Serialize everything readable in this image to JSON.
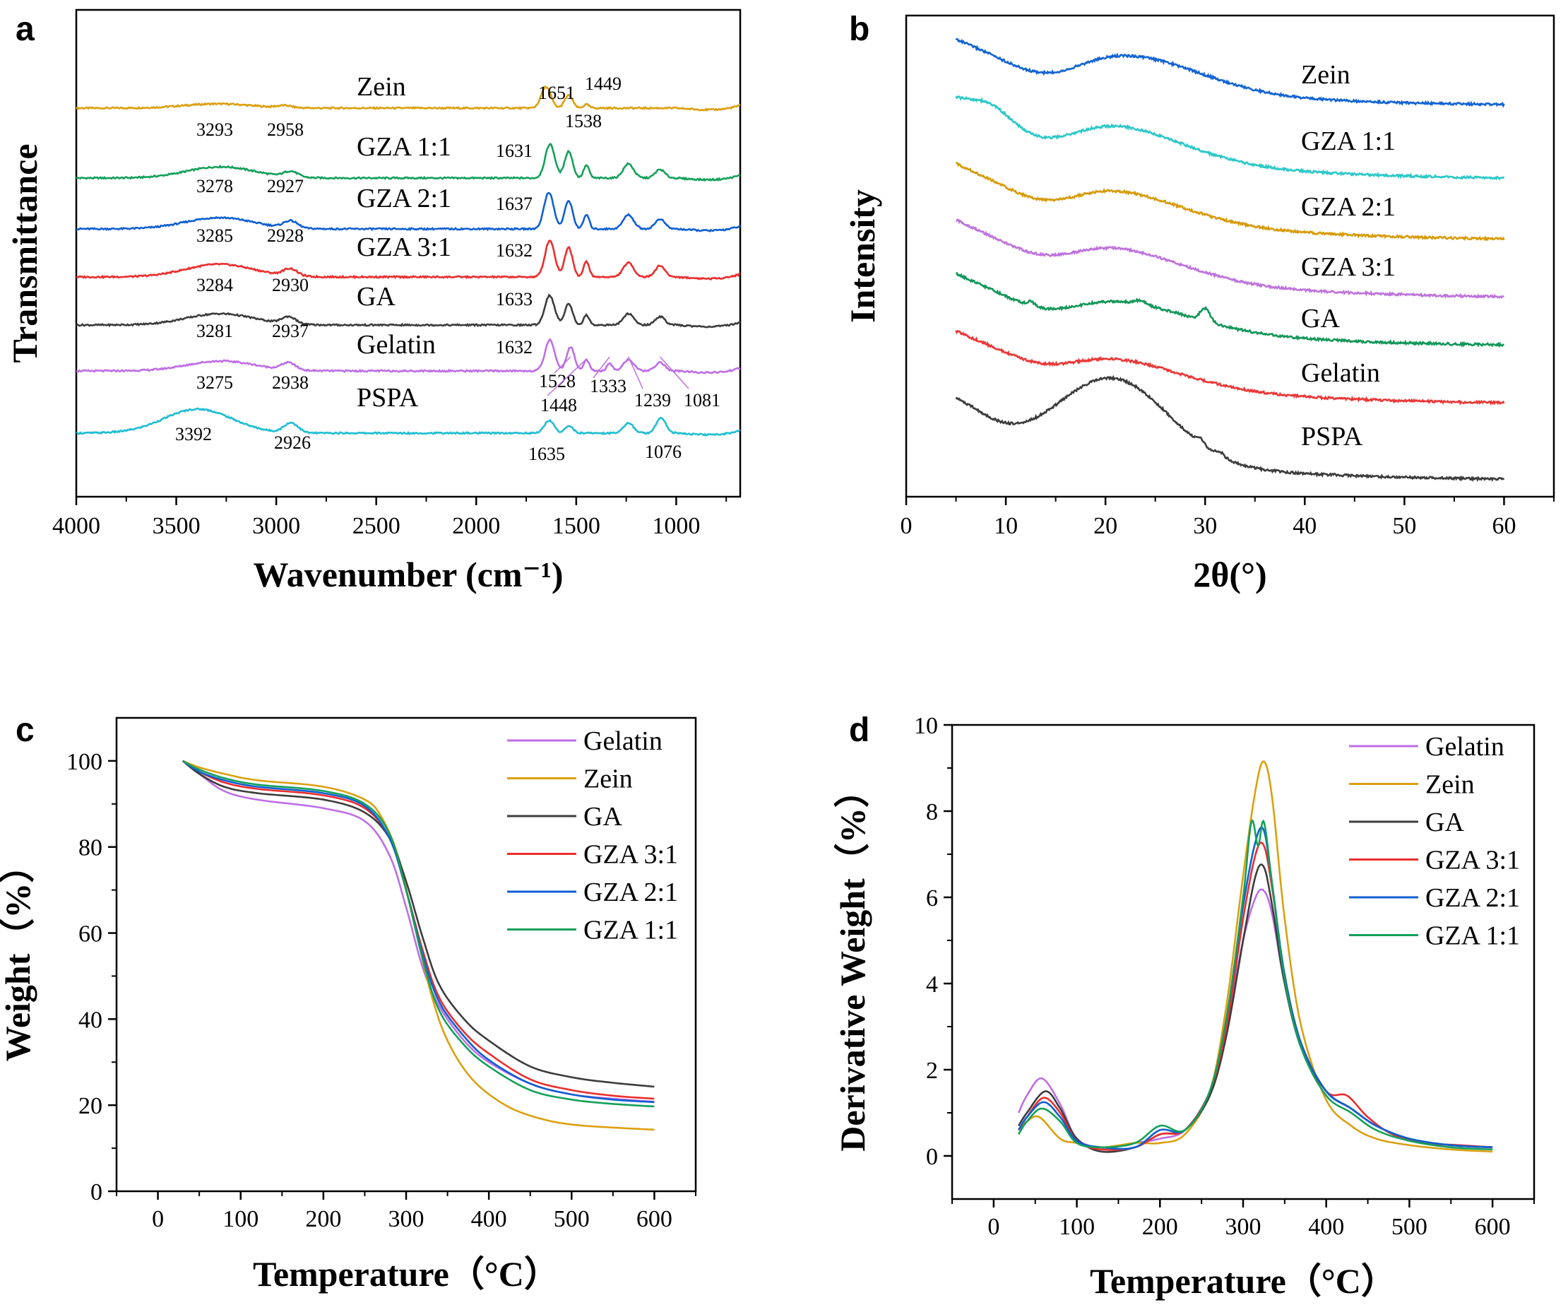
{
  "panels": {
    "a": {
      "letter": "a"
    },
    "b": {
      "letter": "b"
    },
    "c": {
      "letter": "c"
    },
    "d": {
      "letter": "d"
    }
  },
  "chart_data": [
    {
      "id": "a",
      "type": "line",
      "title": "",
      "xlabel": "Wavenumber (cm⁻¹)",
      "ylabel": "Transmittance",
      "xlim": [
        4000,
        680
      ],
      "x_reversed": true,
      "xticks": [
        4000,
        3500,
        3000,
        2500,
        2000,
        1500,
        1000
      ],
      "yticks": [],
      "series": [
        {
          "name": "Zein",
          "color": "#DBA00F",
          "annotations": [
            "1651",
            "1449",
            "3293",
            "2958",
            "1538"
          ]
        },
        {
          "name": "GZA 1:1",
          "color": "#14A05A",
          "annotations": [
            "1631",
            "3278",
            "2927"
          ]
        },
        {
          "name": "GZA 2:1",
          "color": "#0F5FD2",
          "annotations": [
            "1637",
            "3285",
            "2928"
          ]
        },
        {
          "name": "GZA 3:1",
          "color": "#EB2D2D",
          "annotations": [
            "1632",
            "3284",
            "2930"
          ]
        },
        {
          "name": "GA",
          "color": "#3C3C3C",
          "annotations": [
            "1633",
            "3281",
            "2937"
          ]
        },
        {
          "name": "Gelatin",
          "color": "#BE6EE6",
          "annotations": [
            "1632",
            "3275",
            "2938",
            "1528",
            "1333",
            "1448",
            "1239",
            "1081"
          ]
        },
        {
          "name": "PSPA",
          "color": "#1EBED2",
          "annotations": [
            "3392",
            "2926",
            "1635",
            "1076"
          ]
        }
      ],
      "peaks": {
        "Zein": [
          [
            3293,
            6
          ],
          [
            2958,
            3
          ],
          [
            1651,
            30
          ],
          [
            1538,
            18
          ],
          [
            1449,
            5
          ]
        ],
        "GZA 1:1": [
          [
            3278,
            16
          ],
          [
            2927,
            8
          ],
          [
            1631,
            48
          ],
          [
            1538,
            38
          ],
          [
            1449,
            18
          ],
          [
            1239,
            20
          ],
          [
            1081,
            12
          ]
        ],
        "GZA 2:1": [
          [
            3285,
            16
          ],
          [
            2928,
            10
          ],
          [
            1637,
            52
          ],
          [
            1538,
            40
          ],
          [
            1449,
            20
          ],
          [
            1239,
            20
          ],
          [
            1081,
            14
          ]
        ],
        "GZA 3:1": [
          [
            3284,
            18
          ],
          [
            2930,
            10
          ],
          [
            1632,
            52
          ],
          [
            1538,
            42
          ],
          [
            1449,
            22
          ],
          [
            1239,
            20
          ],
          [
            1081,
            16
          ]
        ],
        "GA": [
          [
            3281,
            16
          ],
          [
            2937,
            10
          ],
          [
            1633,
            42
          ],
          [
            1538,
            30
          ],
          [
            1449,
            14
          ],
          [
            1239,
            16
          ],
          [
            1081,
            12
          ]
        ],
        "Gelatin": [
          [
            3275,
            14
          ],
          [
            2938,
            10
          ],
          [
            1632,
            44
          ],
          [
            1528,
            34
          ],
          [
            1448,
            16
          ],
          [
            1333,
            10
          ],
          [
            1239,
            16
          ],
          [
            1081,
            12
          ]
        ],
        "PSPA": [
          [
            3392,
            34
          ],
          [
            2926,
            14
          ],
          [
            1635,
            18
          ],
          [
            1535,
            10
          ],
          [
            1239,
            14
          ],
          [
            1076,
            22
          ]
        ]
      }
    },
    {
      "id": "b",
      "type": "line",
      "title": "",
      "xlabel": "2θ(°)",
      "ylabel": "Intensity",
      "xlim": [
        0,
        65
      ],
      "xticks": [
        0,
        10,
        20,
        30,
        40,
        50,
        60
      ],
      "yticks": [],
      "series": [
        {
          "name": "Zein",
          "color": "#1464D2"
        },
        {
          "name": "GZA 1:1",
          "color": "#2DC8C8"
        },
        {
          "name": "GZA 2:1",
          "color": "#D79B0A"
        },
        {
          "name": "GZA 3:1",
          "color": "#BE73DC"
        },
        {
          "name": "GA",
          "color": "#14965A"
        },
        {
          "name": "Gelatin",
          "color": "#EB3737"
        },
        {
          "name": "PSPA",
          "color": "#3C3C3C"
        }
      ]
    },
    {
      "id": "c",
      "type": "line",
      "title": "",
      "xlabel": "Temperature（°C）",
      "ylabel": "Weight（%）",
      "xlim": [
        -50,
        650
      ],
      "ylim": [
        0,
        110
      ],
      "xticks": [
        0,
        100,
        200,
        300,
        400,
        500,
        600
      ],
      "yticks": [
        0,
        20,
        40,
        60,
        80,
        100
      ],
      "legend_position": "top-right",
      "series": [
        {
          "name": "Gelatin",
          "color": "#BE6EE6",
          "x": [
            30,
            50,
            80,
            120,
            200,
            250,
            280,
            300,
            320,
            340,
            370,
            400,
            450,
            500,
            550,
            600
          ],
          "y": [
            100,
            97,
            93,
            91,
            89,
            86,
            78,
            66,
            52,
            43,
            35,
            30,
            25,
            22.5,
            21.5,
            20.8
          ]
        },
        {
          "name": "Zein",
          "color": "#DBA00F",
          "x": [
            30,
            50,
            80,
            120,
            200,
            250,
            270,
            290,
            310,
            330,
            350,
            380,
            420,
            460,
            500,
            550,
            600
          ],
          "y": [
            100,
            98.5,
            97,
            95.5,
            94,
            91,
            87,
            78,
            62,
            46,
            35,
            26,
            20,
            17,
            15.5,
            14.8,
            14.3
          ]
        },
        {
          "name": "GA",
          "color": "#3C3C3C",
          "x": [
            30,
            50,
            80,
            120,
            200,
            250,
            280,
            300,
            320,
            340,
            370,
            400,
            450,
            500,
            550,
            600
          ],
          "y": [
            100,
            97,
            94,
            92.5,
            91,
            88,
            82,
            72,
            59,
            48,
            40,
            35,
            29,
            26.5,
            25.2,
            24.3
          ]
        },
        {
          "name": "GZA 3:1",
          "color": "#EB2D2D",
          "x": [
            30,
            50,
            80,
            120,
            200,
            250,
            280,
            300,
            320,
            340,
            370,
            400,
            450,
            500,
            550,
            600
          ],
          "y": [
            100,
            97.5,
            95,
            93.5,
            92,
            89,
            82,
            70,
            56,
            45,
            37,
            32,
            26,
            23.5,
            22.2,
            21.5
          ]
        },
        {
          "name": "GZA 2:1",
          "color": "#0F5FD2",
          "x": [
            30,
            50,
            80,
            120,
            200,
            250,
            280,
            300,
            320,
            340,
            370,
            400,
            450,
            500,
            550,
            600
          ],
          "y": [
            100,
            97.5,
            95.5,
            94,
            92.5,
            89.5,
            82,
            70,
            55,
            44,
            36,
            30.5,
            25,
            22.5,
            21.3,
            20.7
          ]
        },
        {
          "name": "GZA 1:1",
          "color": "#14A05A",
          "x": [
            30,
            50,
            80,
            120,
            200,
            250,
            280,
            300,
            320,
            340,
            370,
            400,
            450,
            500,
            550,
            600
          ],
          "y": [
            100,
            98,
            96,
            94.5,
            93,
            90,
            83,
            70,
            54,
            42,
            34,
            29,
            23.5,
            21.3,
            20.3,
            19.7
          ]
        }
      ]
    },
    {
      "id": "d",
      "type": "line",
      "title": "",
      "xlabel": "Temperature（°C）",
      "ylabel": "Derivative Weight（%）",
      "xlim": [
        -50,
        650
      ],
      "ylim": [
        -1,
        10
      ],
      "xticks": [
        0,
        100,
        200,
        300,
        400,
        500,
        600
      ],
      "yticks": [
        0,
        2,
        4,
        6,
        8,
        10
      ],
      "legend_position": "top-right",
      "series": [
        {
          "name": "Gelatin",
          "color": "#BE6EE6",
          "x": [
            30,
            40,
            58,
            80,
            100,
            130,
            170,
            200,
            230,
            260,
            280,
            300,
            315,
            325,
            335,
            350,
            370,
            400,
            430,
            460,
            500,
            550,
            600
          ],
          "y": [
            1.0,
            1.4,
            1.8,
            1.2,
            0.4,
            0.2,
            0.3,
            0.4,
            0.6,
            1.5,
            3.0,
            5.0,
            6.0,
            6.15,
            5.6,
            4.0,
            2.6,
            1.5,
            1.1,
            0.7,
            0.4,
            0.25,
            0.2
          ]
        },
        {
          "name": "Zein",
          "color": "#DBA00F",
          "x": [
            30,
            40,
            55,
            80,
            100,
            130,
            170,
            200,
            230,
            260,
            280,
            300,
            315,
            325,
            335,
            350,
            370,
            400,
            430,
            460,
            500,
            550,
            600
          ],
          "y": [
            0.6,
            0.8,
            0.9,
            0.4,
            0.3,
            0.2,
            0.3,
            0.3,
            0.5,
            1.5,
            3.5,
            6.5,
            8.5,
            9.15,
            8.3,
            5.5,
            3.0,
            1.3,
            0.7,
            0.4,
            0.25,
            0.15,
            0.1
          ]
        },
        {
          "name": "GA",
          "color": "#3C3C3C",
          "x": [
            30,
            40,
            62,
            80,
            100,
            130,
            170,
            200,
            230,
            260,
            280,
            300,
            315,
            325,
            335,
            350,
            370,
            400,
            430,
            460,
            500,
            550,
            600
          ],
          "y": [
            0.7,
            1.0,
            1.5,
            1.1,
            0.4,
            0.1,
            0.2,
            0.5,
            0.6,
            1.4,
            2.8,
            5.0,
            6.5,
            6.7,
            5.8,
            4.0,
            2.5,
            1.5,
            1.1,
            0.7,
            0.4,
            0.25,
            0.2
          ]
        },
        {
          "name": "GZA 3:1",
          "color": "#EB2D2D",
          "x": [
            30,
            40,
            60,
            80,
            100,
            130,
            170,
            200,
            230,
            260,
            280,
            300,
            315,
            325,
            335,
            350,
            370,
            400,
            425,
            450,
            480,
            520,
            560,
            600
          ],
          "y": [
            0.6,
            0.9,
            1.35,
            1.0,
            0.35,
            0.15,
            0.2,
            0.5,
            0.6,
            1.5,
            3.0,
            5.5,
            7.0,
            7.2,
            6.2,
            4.2,
            2.6,
            1.5,
            1.4,
            0.9,
            0.5,
            0.3,
            0.25,
            0.2
          ]
        },
        {
          "name": "GZA 2:1",
          "color": "#0F5FD2",
          "x": [
            30,
            40,
            60,
            80,
            100,
            130,
            170,
            200,
            230,
            260,
            280,
            300,
            315,
            325,
            335,
            350,
            370,
            400,
            430,
            460,
            500,
            550,
            600
          ],
          "y": [
            0.6,
            0.9,
            1.25,
            0.9,
            0.35,
            0.2,
            0.2,
            0.6,
            0.6,
            1.5,
            3.2,
            5.8,
            7.3,
            7.55,
            6.3,
            4.2,
            2.6,
            1.5,
            1.1,
            0.7,
            0.4,
            0.25,
            0.2
          ]
        },
        {
          "name": "GZA 1:1",
          "color": "#14A05A",
          "x": [
            30,
            40,
            58,
            80,
            100,
            130,
            170,
            200,
            230,
            260,
            280,
            300,
            310,
            318,
            325,
            335,
            350,
            370,
            400,
            430,
            460,
            500,
            550,
            600
          ],
          "y": [
            0.5,
            0.8,
            1.1,
            0.8,
            0.3,
            0.2,
            0.3,
            0.7,
            0.6,
            1.5,
            3.2,
            6.0,
            7.75,
            7.2,
            7.75,
            6.3,
            4.1,
            2.5,
            1.4,
            1.0,
            0.6,
            0.35,
            0.2,
            0.15
          ]
        }
      ]
    }
  ]
}
